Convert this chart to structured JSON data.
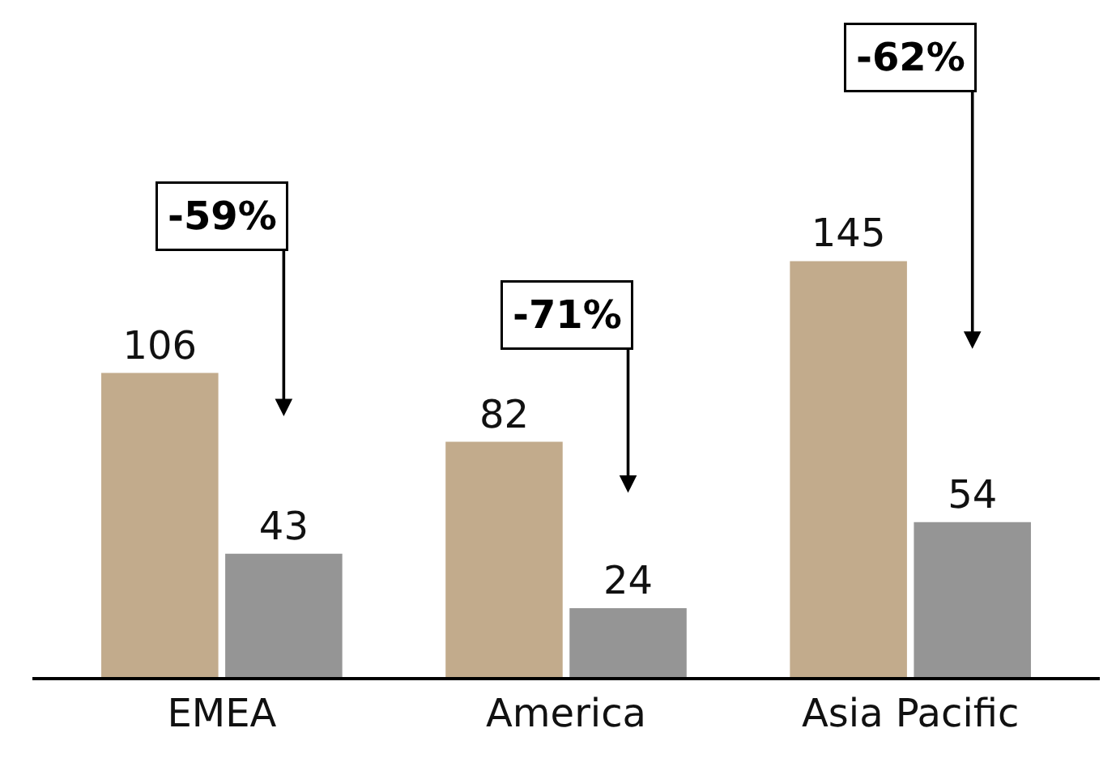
{
  "chart_data": {
    "type": "bar",
    "categories": [
      "EMEA",
      "America",
      "Asia Pacific"
    ],
    "series": [
      {
        "color": "#c2ab8c",
        "values": [
          106,
          82,
          145
        ]
      },
      {
        "color": "#959595",
        "values": [
          43,
          24,
          54
        ]
      }
    ],
    "data_labels": true,
    "legend": false,
    "annotations": [
      "-59%",
      "-71%",
      "-62%"
    ]
  }
}
